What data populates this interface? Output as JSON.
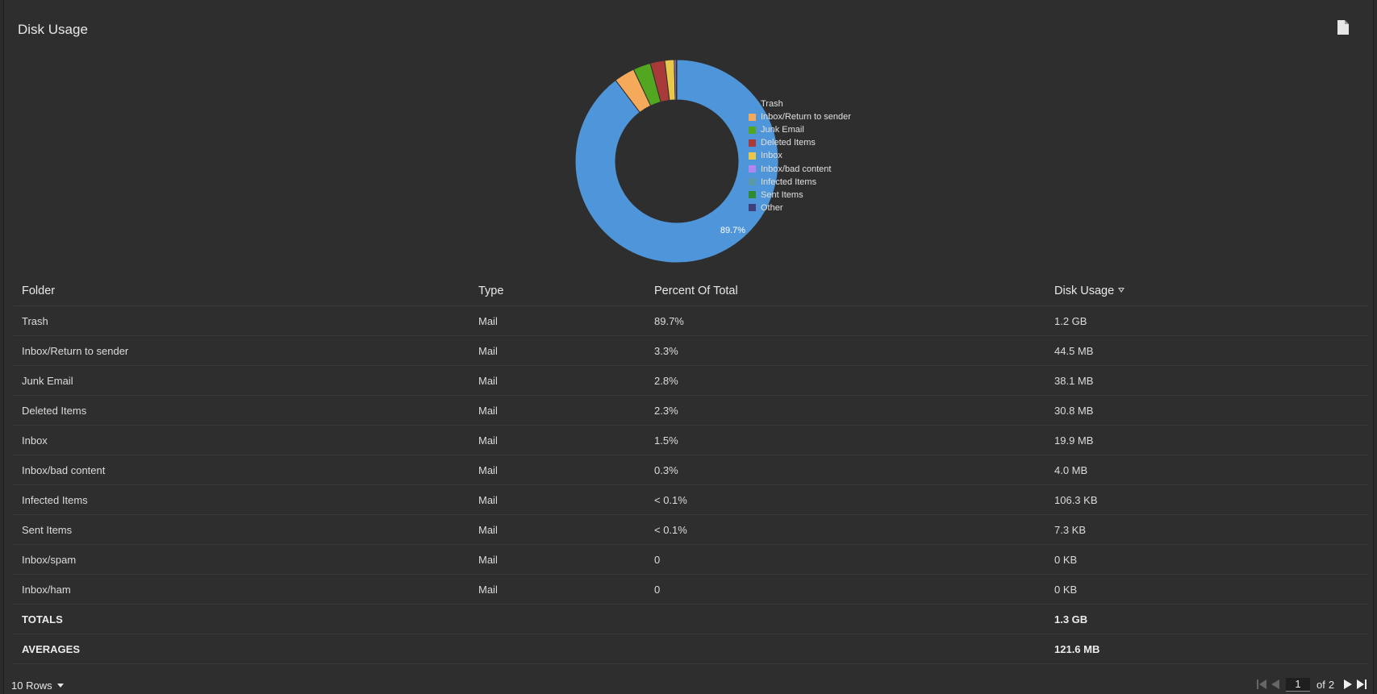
{
  "header": {
    "title": "Disk Usage",
    "export_icon": "document-icon"
  },
  "chart_data": {
    "type": "pie",
    "variant": "donut",
    "categories": [
      "Trash",
      "Inbox/Return to sender",
      "Junk Email",
      "Deleted Items",
      "Inbox",
      "Inbox/bad content",
      "Infected Items",
      "Sent Items",
      "Other"
    ],
    "values": [
      89.7,
      3.3,
      2.8,
      2.3,
      1.5,
      0.3,
      0.05,
      0.03,
      0.02
    ],
    "colors": [
      "#4f95d9",
      "#f5a95b",
      "#53a61f",
      "#a83a3a",
      "#e8c84b",
      "#b185f2",
      "#5a9aa8",
      "#2f8a32",
      "#3f3f7a"
    ],
    "slice_labels": [
      "89.7%"
    ],
    "legend_position": "right"
  },
  "table": {
    "columns": {
      "folder": "Folder",
      "type": "Type",
      "percent": "Percent Of Total",
      "usage": "Disk Usage"
    },
    "rows": [
      {
        "folder": "Trash",
        "type": "Mail",
        "percent": "89.7%",
        "usage": "1.2 GB"
      },
      {
        "folder": "Inbox/Return to sender",
        "type": "Mail",
        "percent": "3.3%",
        "usage": "44.5 MB"
      },
      {
        "folder": "Junk Email",
        "type": "Mail",
        "percent": "2.8%",
        "usage": "38.1 MB"
      },
      {
        "folder": "Deleted Items",
        "type": "Mail",
        "percent": "2.3%",
        "usage": "30.8 MB"
      },
      {
        "folder": "Inbox",
        "type": "Mail",
        "percent": "1.5%",
        "usage": "19.9 MB"
      },
      {
        "folder": "Inbox/bad content",
        "type": "Mail",
        "percent": "0.3%",
        "usage": "4.0 MB"
      },
      {
        "folder": "Infected Items",
        "type": "Mail",
        "percent": "< 0.1%",
        "usage": "106.3 KB"
      },
      {
        "folder": "Sent Items",
        "type": "Mail",
        "percent": "< 0.1%",
        "usage": "7.3 KB"
      },
      {
        "folder": "Inbox/spam",
        "type": "Mail",
        "percent": "0",
        "usage": "0 KB"
      },
      {
        "folder": "Inbox/ham",
        "type": "Mail",
        "percent": "0",
        "usage": "0 KB"
      }
    ],
    "totals": {
      "label": "TOTALS",
      "usage": "1.3 GB"
    },
    "averages": {
      "label": "AVERAGES",
      "usage": "121.6 MB"
    }
  },
  "footer": {
    "rows_label": "10 Rows",
    "page_current": "1",
    "page_of": "of",
    "page_total": "2"
  }
}
